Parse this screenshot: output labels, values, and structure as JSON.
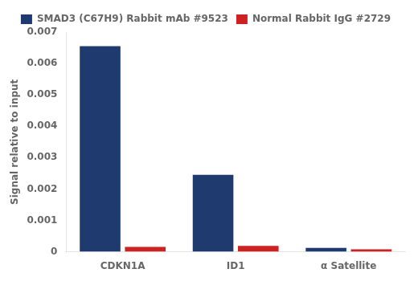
{
  "chart_data": {
    "type": "bar",
    "categories": [
      "CDKN1A",
      "ID1",
      "α Satellite"
    ],
    "series": [
      {
        "name": "SMAD3 (C67H9) Rabbit mAb #9523",
        "color": "#1f3a6e",
        "values": [
          0.00655,
          0.00245,
          0.000125
        ]
      },
      {
        "name": "Normal Rabbit IgG #2729",
        "color": "#cc2222",
        "values": [
          0.000155,
          0.000185,
          8e-05
        ]
      }
    ],
    "ylabel": "Signal relative to input",
    "ylim": [
      0,
      0.007
    ],
    "yticks": [
      0,
      0.001,
      0.002,
      0.003,
      0.004,
      0.005,
      0.006,
      0.007
    ],
    "grid": false,
    "legend": "top"
  }
}
